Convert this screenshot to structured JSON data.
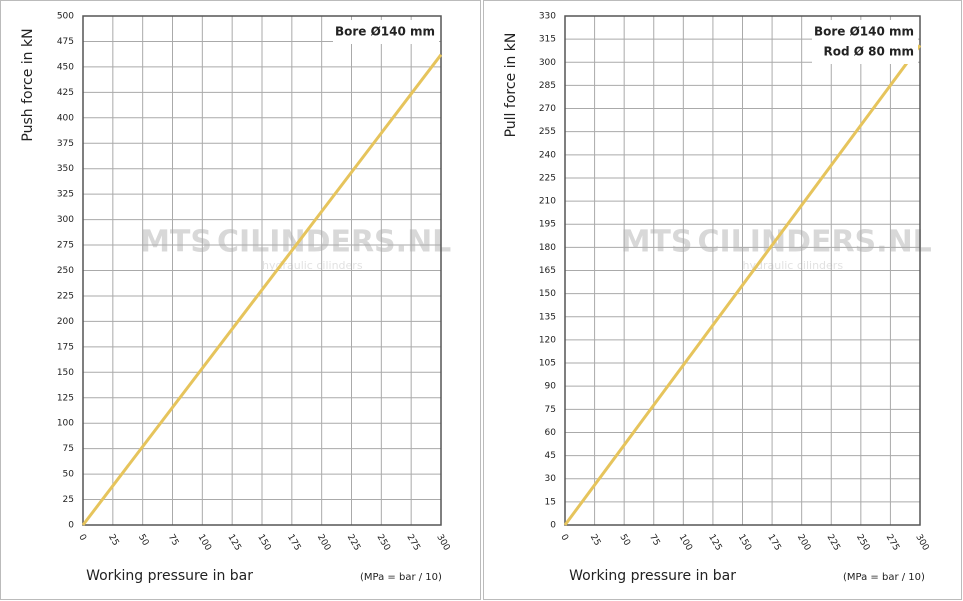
{
  "chart_data": [
    {
      "type": "line",
      "ylabel": "Push force  in kN",
      "xlabel": "Working pressure in bar",
      "xlabel_note": "(MPa = bar / 10)",
      "annotations": [
        "Bore Ø140 mm"
      ],
      "watermark": [
        "MTS",
        "CILINDERS.NL",
        "hydraulic cilinders"
      ],
      "x": [
        0,
        300
      ],
      "series": [
        {
          "color": "#e6c45c",
          "values": [
            0,
            462
          ]
        }
      ],
      "xlim": [
        0,
        300
      ],
      "xticks": [
        0,
        25,
        50,
        75,
        100,
        125,
        150,
        175,
        200,
        225,
        250,
        275,
        300
      ],
      "ylim": [
        0,
        500
      ],
      "yticks": [
        0,
        25,
        50,
        75,
        100,
        125,
        150,
        175,
        200,
        225,
        250,
        275,
        300,
        325,
        350,
        375,
        400,
        425,
        450,
        475,
        500
      ],
      "grid": true
    },
    {
      "type": "line",
      "ylabel": "Pull force in kN",
      "xlabel": "Working pressure in bar",
      "xlabel_note": "(MPa = bar / 10)",
      "annotations": [
        "Bore Ø140 mm",
        "Rod Ø  80 mm"
      ],
      "watermark": [
        "MTS",
        "CILINDERS.NL",
        "hydraulic cilinders"
      ],
      "x": [
        0,
        300
      ],
      "series": [
        {
          "color": "#e6c45c",
          "values": [
            0,
            311
          ]
        }
      ],
      "xlim": [
        0,
        300
      ],
      "xticks": [
        0,
        25,
        50,
        75,
        100,
        125,
        150,
        175,
        200,
        225,
        250,
        275,
        300
      ],
      "ylim": [
        0,
        330
      ],
      "yticks": [
        0,
        15,
        30,
        45,
        60,
        75,
        90,
        105,
        120,
        135,
        150,
        165,
        180,
        195,
        210,
        225,
        240,
        255,
        270,
        285,
        300,
        315,
        330
      ],
      "grid": true
    }
  ]
}
